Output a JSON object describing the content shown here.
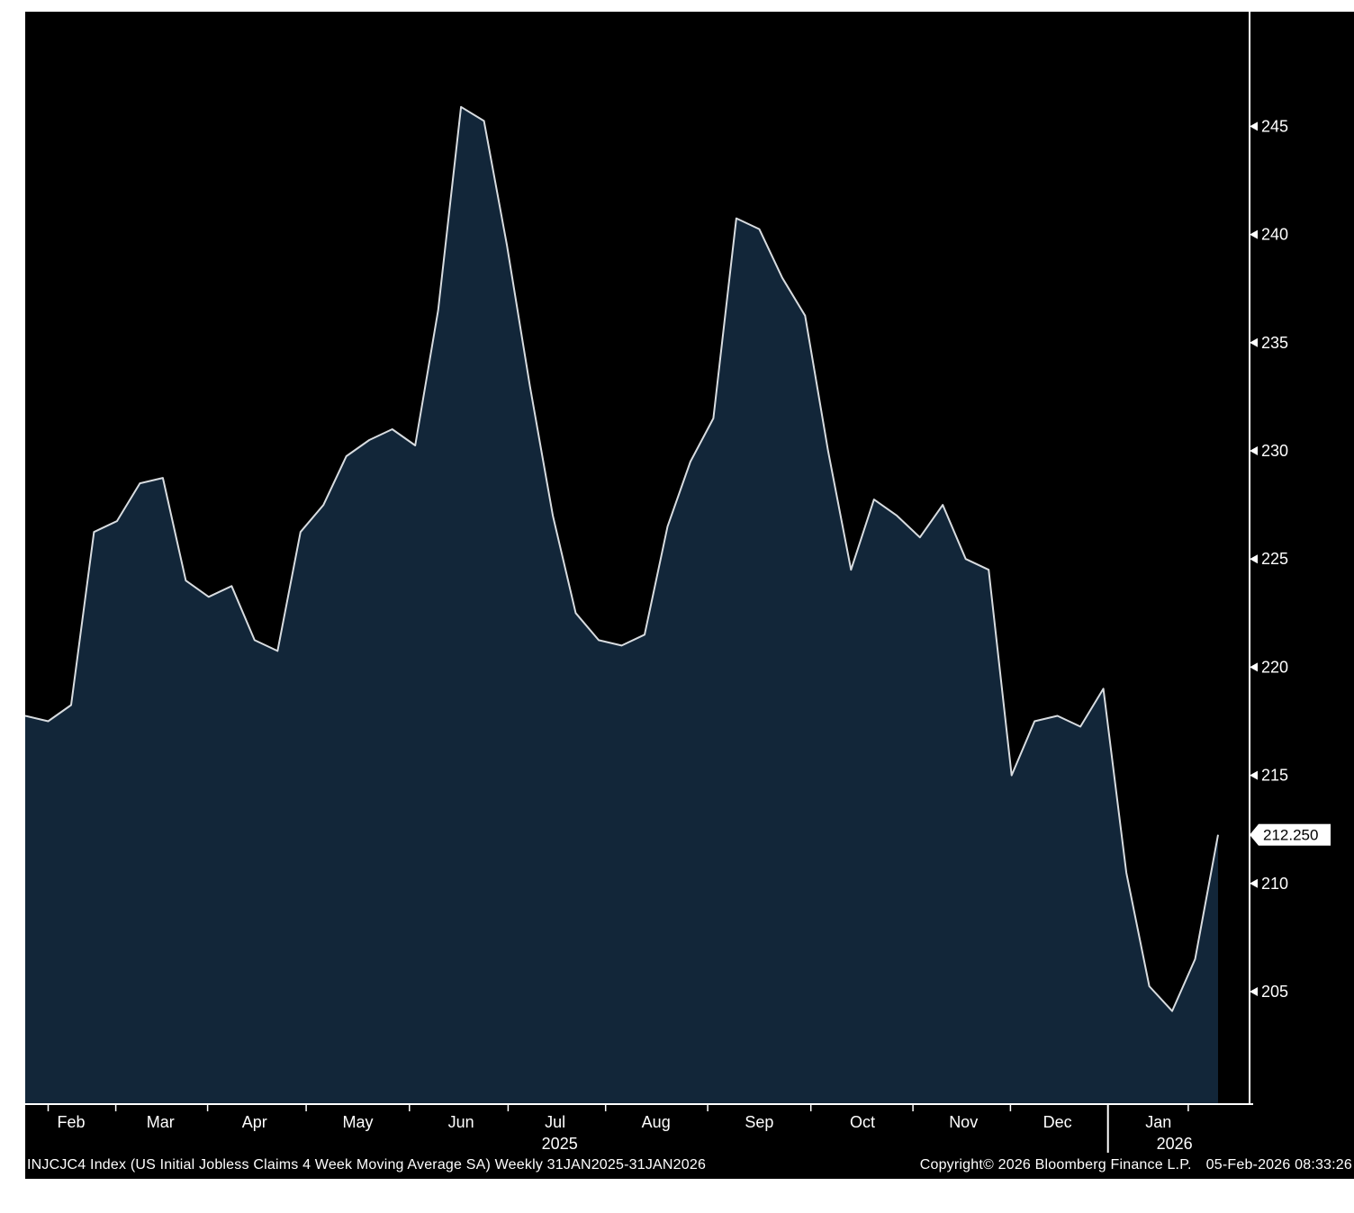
{
  "chart_data": {
    "type": "area",
    "title": "INJCJC4 Index (US Initial Jobless Claims 4 Week Moving Average SA)",
    "security": "INJCJC4 Index",
    "series_name": "US Initial Jobless Claims 4 Week Moving Average SA",
    "frequency": "Weekly",
    "period": "31JAN2025-31JAN2026",
    "ylim": [
      199.8,
      250.3
    ],
    "y_ticks": [
      205,
      210,
      215,
      220,
      225,
      230,
      235,
      240,
      245
    ],
    "last_value": 212.25,
    "last_value_label": "212.250",
    "n_points": 53,
    "values": [
      217.75,
      217.5,
      218.25,
      226.25,
      226.75,
      228.5,
      228.75,
      224.0,
      223.25,
      223.75,
      221.25,
      220.75,
      226.25,
      227.5,
      229.75,
      230.5,
      231.0,
      230.25,
      236.5,
      245.9,
      245.25,
      239.5,
      233.0,
      227.0,
      222.5,
      221.25,
      221.0,
      221.5,
      226.5,
      229.5,
      231.5,
      240.75,
      240.25,
      238.0,
      236.25,
      230.0,
      224.5,
      227.75,
      227.0,
      226.0,
      227.5,
      225.0,
      224.5,
      215.0,
      217.5,
      217.75,
      217.25,
      219.0,
      210.5,
      205.25,
      204.1,
      206.5,
      212.25
    ],
    "x_axis": {
      "months": [
        {
          "label": "Feb",
          "week": 2.0
        },
        {
          "label": "Mar",
          "week": 5.9
        },
        {
          "label": "Apr",
          "week": 10.0
        },
        {
          "label": "May",
          "week": 14.5
        },
        {
          "label": "Jun",
          "week": 19.0
        },
        {
          "label": "Jul",
          "week": 23.1
        },
        {
          "label": "Aug",
          "week": 27.5
        },
        {
          "label": "Sep",
          "week": 32.0
        },
        {
          "label": "Oct",
          "week": 36.5
        },
        {
          "label": "Nov",
          "week": 40.9
        },
        {
          "label": "Dec",
          "week": 45.0
        },
        {
          "label": "Jan",
          "week": 49.4
        }
      ],
      "years": [
        {
          "label": "2025",
          "week": 23.3
        },
        {
          "label": "2026",
          "week": 50.1
        }
      ]
    },
    "legend": "none",
    "grid": "off",
    "line_color": "#d8dce0",
    "fill_color": "#122639",
    "background": "#000000",
    "axis_color": "#ffffff"
  },
  "footer": {
    "description": "INJCJC4 Index (US Initial Jobless Claims 4 Week Moving Average SA) Weekly 31JAN2025-31JAN2026",
    "copyright": "Copyright© 2026 Bloomberg Finance L.P.",
    "timestamp": "05-Feb-2026 08:33:26"
  }
}
